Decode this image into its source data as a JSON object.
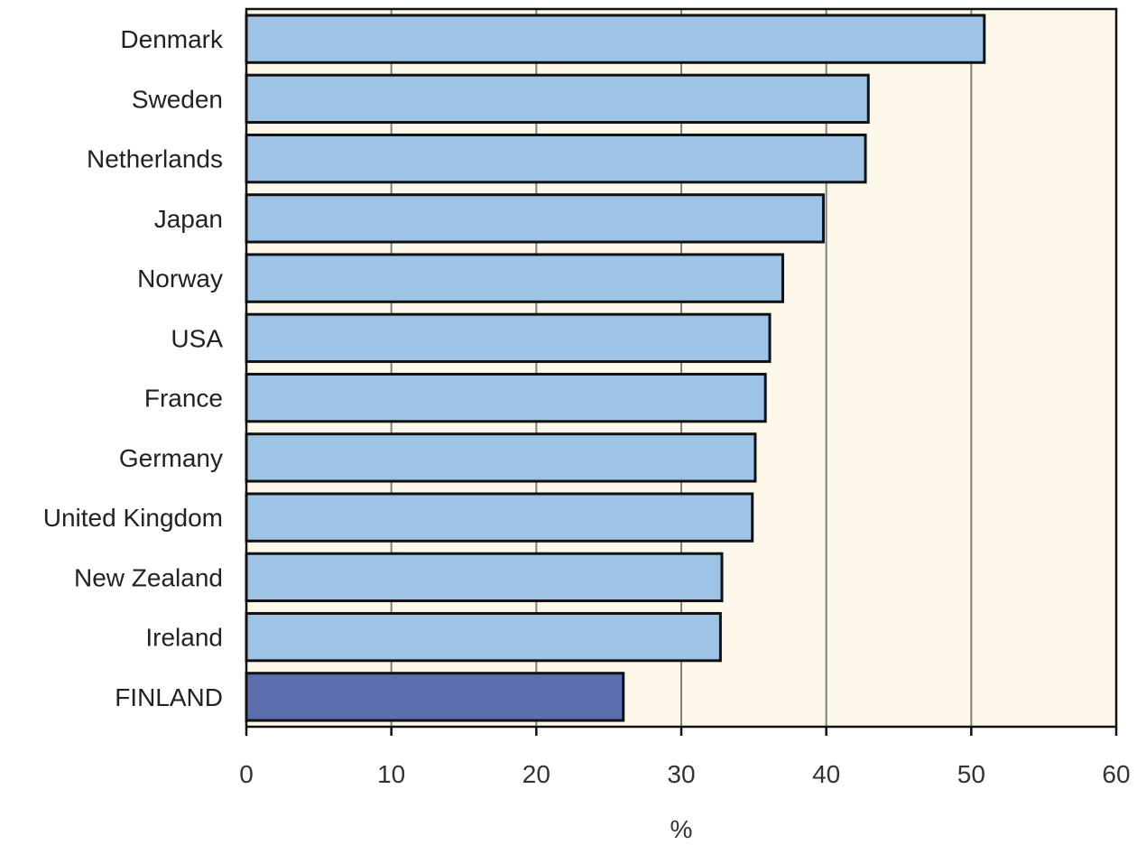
{
  "chart_data": {
    "type": "bar",
    "orientation": "horizontal",
    "categories": [
      "Denmark",
      "Sweden",
      "Netherlands",
      "Japan",
      "Norway",
      "USA",
      "France",
      "Germany",
      "United Kingdom",
      "New Zealand",
      "Ireland",
      "FINLAND"
    ],
    "values": [
      50.9,
      42.9,
      42.7,
      39.8,
      37.0,
      36.1,
      35.8,
      35.1,
      34.9,
      32.8,
      32.7,
      26.0
    ],
    "highlight": "FINLAND",
    "title": "",
    "xlabel": "%",
    "ylabel": "",
    "xlim": [
      0,
      60
    ],
    "xticks": [
      "0",
      "10",
      "20",
      "30",
      "40",
      "50",
      "60"
    ],
    "grid": "vertical",
    "legend": "none",
    "colors": {
      "bar": "#9dc3e6",
      "highlight_bar": "#5a6eb0",
      "plot_background": "#fdf8e9",
      "gridline": "#808080",
      "outline": "#111111"
    }
  }
}
